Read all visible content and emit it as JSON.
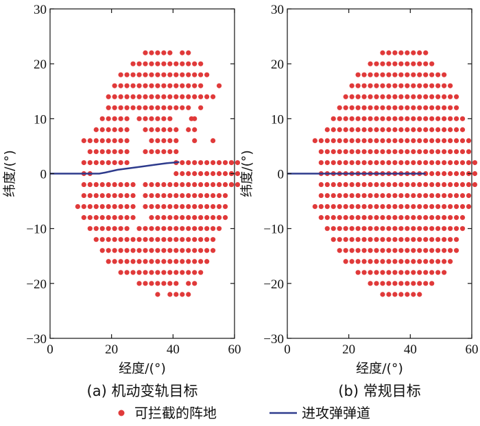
{
  "chart_data": [
    {
      "type": "scatter",
      "caption": "(a) 机动变轨目标",
      "xlabel": "经度/(°)",
      "ylabel": "纬度/(°)",
      "xlim": [
        0,
        60
      ],
      "ylim": [
        -30,
        30
      ],
      "xticks": [
        0,
        20,
        40,
        60
      ],
      "yticks": [
        -30,
        -20,
        -10,
        0,
        10,
        20,
        30
      ],
      "grid": false,
      "legend_position": "bottom",
      "series": [
        {
          "name": "可拦截的阵地",
          "kind": "points",
          "color": "#e03a3a",
          "grid_spacing": [
            2,
            2
          ],
          "rows": [
            {
              "lat": 22,
              "lon_ranges": [
                [
                  31,
                  39
                ],
                [
                  43,
                  45
                ]
              ]
            },
            {
              "lat": 20,
              "lon_ranges": [
                [
                  27,
                  49
                ]
              ]
            },
            {
              "lat": 18,
              "lon_ranges": [
                [
                  23,
                  51
                ]
              ]
            },
            {
              "lat": 16,
              "lon_ranges": [
                [
                  21,
                  49
                ],
                [
                  55,
                  55
                ]
              ]
            },
            {
              "lat": 14,
              "lon_ranges": [
                [
                  19,
                  53
                ]
              ]
            },
            {
              "lat": 12,
              "lon_ranges": [
                [
                  19,
                  25
                ],
                [
                  27,
                  41
                ],
                [
                  43,
                  45
                ],
                [
                  49,
                  49
                ]
              ]
            },
            {
              "lat": 10,
              "lon_ranges": [
                [
                  17,
                  25
                ],
                [
                  29,
                  39
                ],
                [
                  47,
                  47
                ]
              ]
            },
            {
              "lat": 8,
              "lon_ranges": [
                [
                  15,
                  25
                ],
                [
                  31,
                  41
                ],
                [
                  45,
                  45
                ]
              ]
            },
            {
              "lat": 6,
              "lon_ranges": [
                [
                  11,
                  25
                ],
                [
                  33,
                  41
                ],
                [
                  47,
                  47
                ],
                [
                  53,
                  53
                ]
              ]
            },
            {
              "lat": 4,
              "lon_ranges": [
                [
                  13,
                  25
                ],
                [
                  31,
                  41
                ]
              ]
            },
            {
              "lat": 2,
              "lon_ranges": [
                [
                  11,
                  25
                ],
                [
                  41,
                  59
                ]
              ]
            },
            {
              "lat": 0,
              "lon_ranges": [
                [
                  11,
                  13
                ],
                [
                  41,
                  59
                ]
              ]
            },
            {
              "lat": -2,
              "lon_ranges": [
                [
                  11,
                  27
                ],
                [
                  31,
                  59
                ]
              ]
            },
            {
              "lat": -4,
              "lon_ranges": [
                [
                  11,
                  27
                ],
                [
                  31,
                  57
                ]
              ]
            },
            {
              "lat": -6,
              "lon_ranges": [
                [
                  9,
                  27
                ],
                [
                  31,
                  57
                ]
              ]
            },
            {
              "lat": -8,
              "lon_ranges": [
                [
                  11,
                  27
                ],
                [
                  33,
                  57
                ]
              ]
            },
            {
              "lat": -10,
              "lon_ranges": [
                [
                  13,
                  25
                ],
                [
                  29,
                  55
                ]
              ]
            },
            {
              "lat": -12,
              "lon_ranges": [
                [
                  15,
                  53
                ]
              ]
            },
            {
              "lat": -14,
              "lon_ranges": [
                [
                  17,
                  53
                ]
              ]
            },
            {
              "lat": -16,
              "lon_ranges": [
                [
                  19,
                  51
                ]
              ]
            },
            {
              "lat": -18,
              "lon_ranges": [
                [
                  23,
                  49
                ]
              ]
            },
            {
              "lat": -20,
              "lon_ranges": [
                [
                  29,
                  41
                ],
                [
                  45,
                  47
                ]
              ]
            },
            {
              "lat": -22,
              "lon_ranges": [
                [
                  35,
                  35
                ],
                [
                  39,
                  45
                ]
              ]
            }
          ],
          "extra_points": [
            [
              59,
              2
            ],
            [
              61,
              2
            ],
            [
              59,
              0
            ],
            [
              61,
              0
            ],
            [
              59,
              -2
            ],
            [
              61,
              -2
            ],
            [
              47,
              8
            ],
            [
              46,
              10
            ]
          ]
        },
        {
          "name": "进攻弹弹道",
          "kind": "line",
          "color": "#2d3a8c",
          "points": [
            [
              0,
              0
            ],
            [
              16,
              0
            ],
            [
              18,
              0.2
            ],
            [
              22,
              0.7
            ],
            [
              26,
              1.0
            ],
            [
              30,
              1.3
            ],
            [
              34,
              1.6
            ],
            [
              38,
              1.9
            ],
            [
              42,
              2.1
            ]
          ]
        }
      ]
    },
    {
      "type": "scatter",
      "caption": "(b) 常规目标",
      "xlabel": "经度/(°)",
      "ylabel": "纬度/(°)",
      "xlim": [
        0,
        60
      ],
      "ylim": [
        -30,
        30
      ],
      "xticks": [
        0,
        20,
        40,
        60
      ],
      "yticks": [
        -30,
        -20,
        -10,
        0,
        10,
        20,
        30
      ],
      "grid": false,
      "legend_position": "bottom",
      "series": [
        {
          "name": "可拦截的阵地",
          "kind": "points",
          "color": "#e03a3a",
          "grid_spacing": [
            2,
            2
          ],
          "rows": [
            {
              "lat": 22,
              "lon_ranges": [
                [
                  31,
                  45
                ]
              ]
            },
            {
              "lat": 20,
              "lon_ranges": [
                [
                  27,
                  47
                ]
              ]
            },
            {
              "lat": 18,
              "lon_ranges": [
                [
                  23,
                  51
                ]
              ]
            },
            {
              "lat": 16,
              "lon_ranges": [
                [
                  21,
                  53
                ]
              ]
            },
            {
              "lat": 14,
              "lon_ranges": [
                [
                  19,
                  55
                ]
              ]
            },
            {
              "lat": 12,
              "lon_ranges": [
                [
                  17,
                  55
                ]
              ]
            },
            {
              "lat": 10,
              "lon_ranges": [
                [
                  15,
                  57
                ]
              ]
            },
            {
              "lat": 8,
              "lon_ranges": [
                [
                  13,
                  57
                ]
              ]
            },
            {
              "lat": 6,
              "lon_ranges": [
                [
                  9,
                  59
                ]
              ]
            },
            {
              "lat": 4,
              "lon_ranges": [
                [
                  11,
                  59
                ]
              ]
            },
            {
              "lat": 2,
              "lon_ranges": [
                [
                  11,
                  59
                ]
              ]
            },
            {
              "lat": 0,
              "lon_ranges": [
                [
                  11,
                  59
                ]
              ]
            },
            {
              "lat": -2,
              "lon_ranges": [
                [
                  11,
                  59
                ]
              ]
            },
            {
              "lat": -4,
              "lon_ranges": [
                [
                  11,
                  59
                ]
              ]
            },
            {
              "lat": -6,
              "lon_ranges": [
                [
                  9,
                  59
                ]
              ]
            },
            {
              "lat": -8,
              "lon_ranges": [
                [
                  11,
                  57
                ]
              ]
            },
            {
              "lat": -10,
              "lon_ranges": [
                [
                  13,
                  57
                ]
              ]
            },
            {
              "lat": -12,
              "lon_ranges": [
                [
                  15,
                  55
                ]
              ]
            },
            {
              "lat": -14,
              "lon_ranges": [
                [
                  17,
                  55
                ]
              ]
            },
            {
              "lat": -16,
              "lon_ranges": [
                [
                  19,
                  53
                ]
              ]
            },
            {
              "lat": -18,
              "lon_ranges": [
                [
                  23,
                  51
                ]
              ]
            },
            {
              "lat": -20,
              "lon_ranges": [
                [
                  27,
                  47
                ]
              ]
            },
            {
              "lat": -22,
              "lon_ranges": [
                [
                  31,
                  43
                ]
              ]
            }
          ],
          "extra_points": [
            [
              61,
              2
            ],
            [
              61,
              0
            ],
            [
              61,
              -2
            ]
          ]
        },
        {
          "name": "进攻弹弹道",
          "kind": "line",
          "color": "#2d3a8c",
          "points": [
            [
              0,
              0
            ],
            [
              45,
              0
            ]
          ]
        }
      ]
    }
  ],
  "legend": {
    "items": [
      {
        "label": "可拦截的阵地",
        "marker": "dot",
        "color": "#e03a3a"
      },
      {
        "label": "进攻弹弹道",
        "marker": "line",
        "color": "#2d3a8c"
      }
    ]
  }
}
